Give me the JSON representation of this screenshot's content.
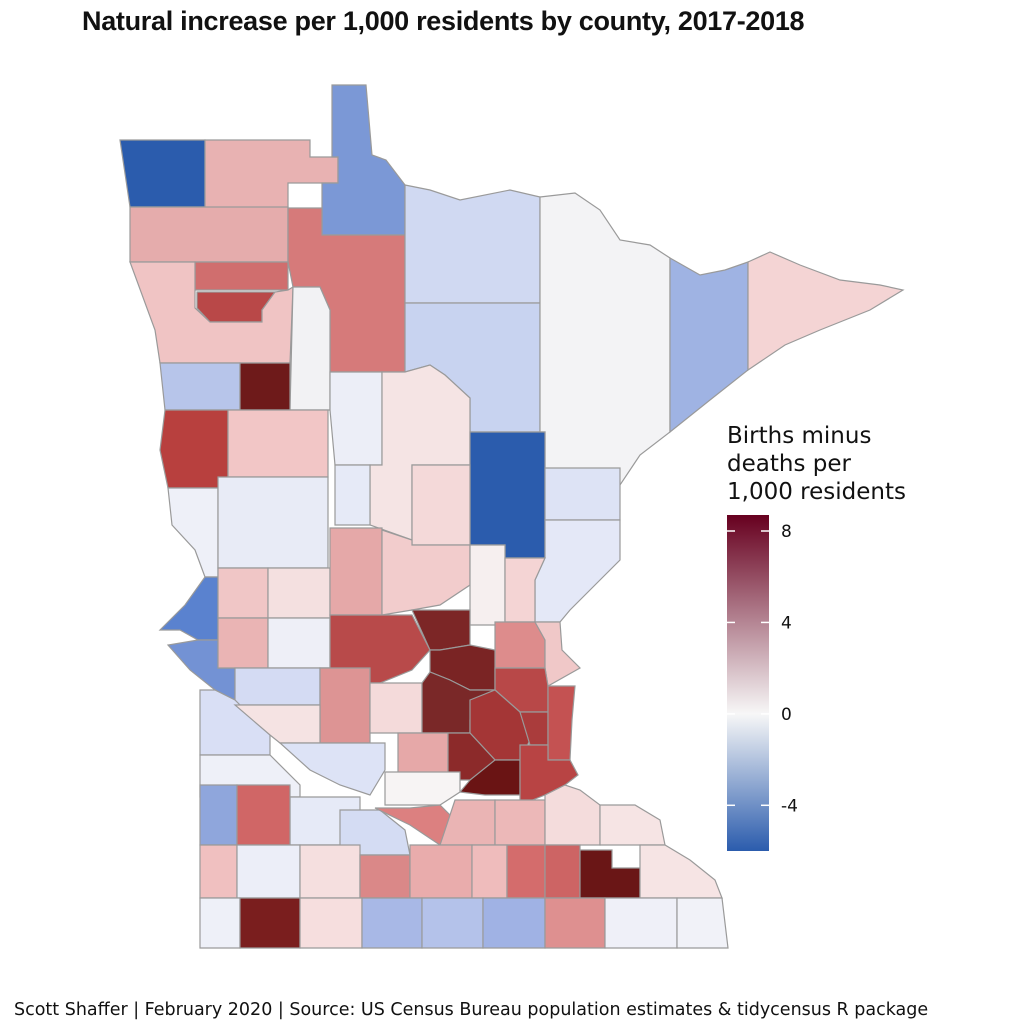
{
  "title": "Natural increase per 1,000 residents by county, 2017-2018",
  "legend": {
    "title_lines": [
      "Births minus",
      "deaths per",
      "1,000 residents"
    ],
    "ticks": [
      8,
      4,
      0,
      -4
    ],
    "min": -6,
    "max": 8.7,
    "colors": {
      "low": "#2b5cad",
      "mid": "#f7f7f7",
      "high": "#67001f"
    }
  },
  "footer": "Scott Shaffer | February 2020 | Source: US Census Bureau population estimates & tidycensus R package",
  "chart_data": {
    "type": "choropleth",
    "region": "Minnesota counties",
    "variable": "Births minus deaths per 1,000 residents",
    "period": "2017-2018"
  }
}
